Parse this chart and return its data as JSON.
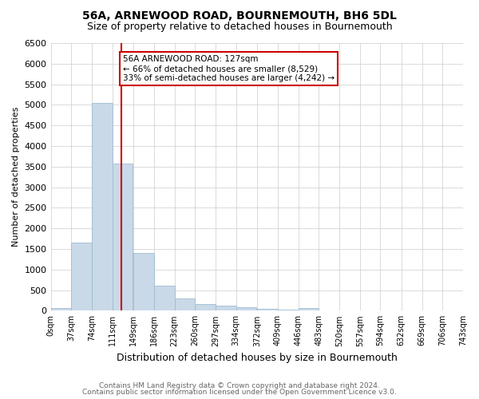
{
  "title1": "56A, ARNEWOOD ROAD, BOURNEMOUTH, BH6 5DL",
  "title2": "Size of property relative to detached houses in Bournemouth",
  "xlabel": "Distribution of detached houses by size in Bournemouth",
  "ylabel": "Number of detached properties",
  "bin_edges": [
    0,
    37,
    74,
    111,
    149,
    186,
    223,
    260,
    297,
    334,
    372,
    409,
    446,
    483,
    520,
    557,
    594,
    632,
    669,
    706,
    743
  ],
  "bar_values": [
    70,
    1650,
    5050,
    3580,
    1400,
    610,
    300,
    155,
    130,
    90,
    45,
    35,
    55,
    0,
    0,
    0,
    0,
    0,
    0,
    0
  ],
  "bar_color": "#c9d9e8",
  "bar_edgecolor": "#a0bcd0",
  "vline_x": 127,
  "vline_color": "#cc0000",
  "ylim": [
    0,
    6500
  ],
  "yticks": [
    0,
    500,
    1000,
    1500,
    2000,
    2500,
    3000,
    3500,
    4000,
    4500,
    5000,
    5500,
    6000,
    6500
  ],
  "annotation_title": "56A ARNEWOOD ROAD: 127sqm",
  "annotation_line1": "← 66% of detached houses are smaller (8,529)",
  "annotation_line2": "33% of semi-detached houses are larger (4,242) →",
  "annotation_box_color": "#cc0000",
  "footnote1": "Contains HM Land Registry data © Crown copyright and database right 2024.",
  "footnote2": "Contains public sector information licensed under the Open Government Licence v3.0.",
  "background_color": "#ffffff",
  "grid_color": "#cccccc"
}
